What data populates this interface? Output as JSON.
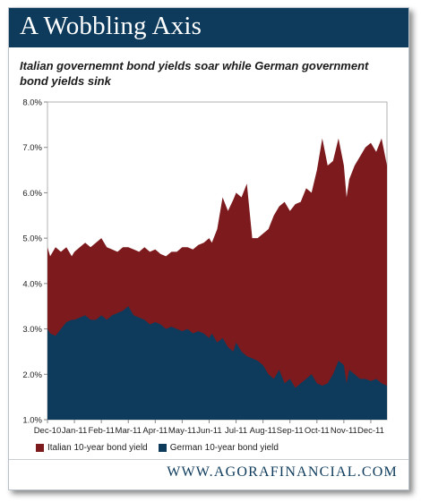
{
  "header": {
    "title": "A Wobbling Axis",
    "subtitle": "Italian governemnt bond yields soar while German government bond yields sink"
  },
  "footer": {
    "source": "WWW.AGORAFINANCIAL.COM"
  },
  "colors": {
    "banner": "#0e3b5c",
    "italy": "#7c1a1d",
    "germany": "#0e3b5c"
  },
  "chart_data": {
    "type": "area",
    "categories": [
      "Dec-10",
      "Jan-11",
      "Feb-11",
      "Mar-11",
      "Apr-11",
      "May-11",
      "Jun-11",
      "Jul-11",
      "Aug-11",
      "Sep-11",
      "Oct-11",
      "Nov-11",
      "Dec-11"
    ],
    "y_ticks": [
      "1.0%",
      "2.0%",
      "3.0%",
      "4.0%",
      "5.0%",
      "6.0%",
      "7.0%",
      "8.0%"
    ],
    "ylim": [
      1.0,
      8.0
    ],
    "x": [
      0,
      0.1,
      0.3,
      0.5,
      0.7,
      0.9,
      1.0,
      1.2,
      1.4,
      1.6,
      1.8,
      2.0,
      2.2,
      2.4,
      2.6,
      2.8,
      3.0,
      3.2,
      3.4,
      3.6,
      3.8,
      4.0,
      4.2,
      4.4,
      4.6,
      4.8,
      5.0,
      5.2,
      5.4,
      5.6,
      5.8,
      6.0,
      6.1,
      6.3,
      6.5,
      6.7,
      6.9,
      7.0,
      7.2,
      7.4,
      7.6,
      7.8,
      8.0,
      8.2,
      8.4,
      8.6,
      8.8,
      9.0,
      9.2,
      9.4,
      9.6,
      9.8,
      10.0,
      10.2,
      10.4,
      10.6,
      10.8,
      11.0,
      11.1,
      11.2,
      11.4,
      11.6,
      11.8,
      12.0,
      12.2,
      12.4,
      12.6
    ],
    "series": [
      {
        "name": "Italian 10-year bond yield",
        "color": "#7c1a1d",
        "values": [
          4.8,
          4.6,
          4.8,
          4.7,
          4.8,
          4.6,
          4.7,
          4.8,
          4.9,
          4.8,
          4.9,
          5.0,
          4.8,
          4.75,
          4.7,
          4.8,
          4.8,
          4.75,
          4.7,
          4.8,
          4.7,
          4.75,
          4.65,
          4.6,
          4.7,
          4.7,
          4.8,
          4.8,
          4.75,
          4.85,
          4.9,
          5.0,
          4.9,
          5.2,
          5.9,
          5.6,
          5.85,
          6.0,
          5.9,
          6.2,
          5.0,
          5.0,
          5.1,
          5.2,
          5.5,
          5.7,
          5.8,
          5.6,
          5.75,
          5.8,
          6.1,
          6.0,
          6.5,
          7.2,
          6.6,
          6.7,
          7.2,
          6.6,
          5.9,
          6.3,
          6.6,
          6.8,
          7.0,
          7.1,
          6.9,
          7.2,
          6.6
        ]
      },
      {
        "name": "German 10-year bond yield",
        "color": "#0e3b5c",
        "values": [
          3.0,
          2.9,
          2.85,
          3.0,
          3.15,
          3.2,
          3.2,
          3.25,
          3.3,
          3.2,
          3.2,
          3.3,
          3.2,
          3.3,
          3.35,
          3.4,
          3.5,
          3.3,
          3.25,
          3.2,
          3.1,
          3.15,
          3.1,
          3.0,
          3.05,
          3.0,
          2.95,
          3.0,
          2.9,
          2.95,
          2.9,
          2.8,
          2.9,
          2.7,
          2.8,
          2.6,
          2.5,
          2.7,
          2.5,
          2.4,
          2.35,
          2.3,
          2.2,
          2.0,
          1.9,
          2.1,
          1.8,
          1.9,
          1.7,
          1.8,
          1.9,
          2.0,
          1.8,
          1.75,
          1.8,
          2.0,
          2.3,
          2.2,
          1.8,
          2.1,
          2.0,
          1.9,
          1.9,
          1.85,
          1.9,
          1.8,
          1.75
        ]
      }
    ],
    "legend": "bottom-left",
    "grid": false
  }
}
